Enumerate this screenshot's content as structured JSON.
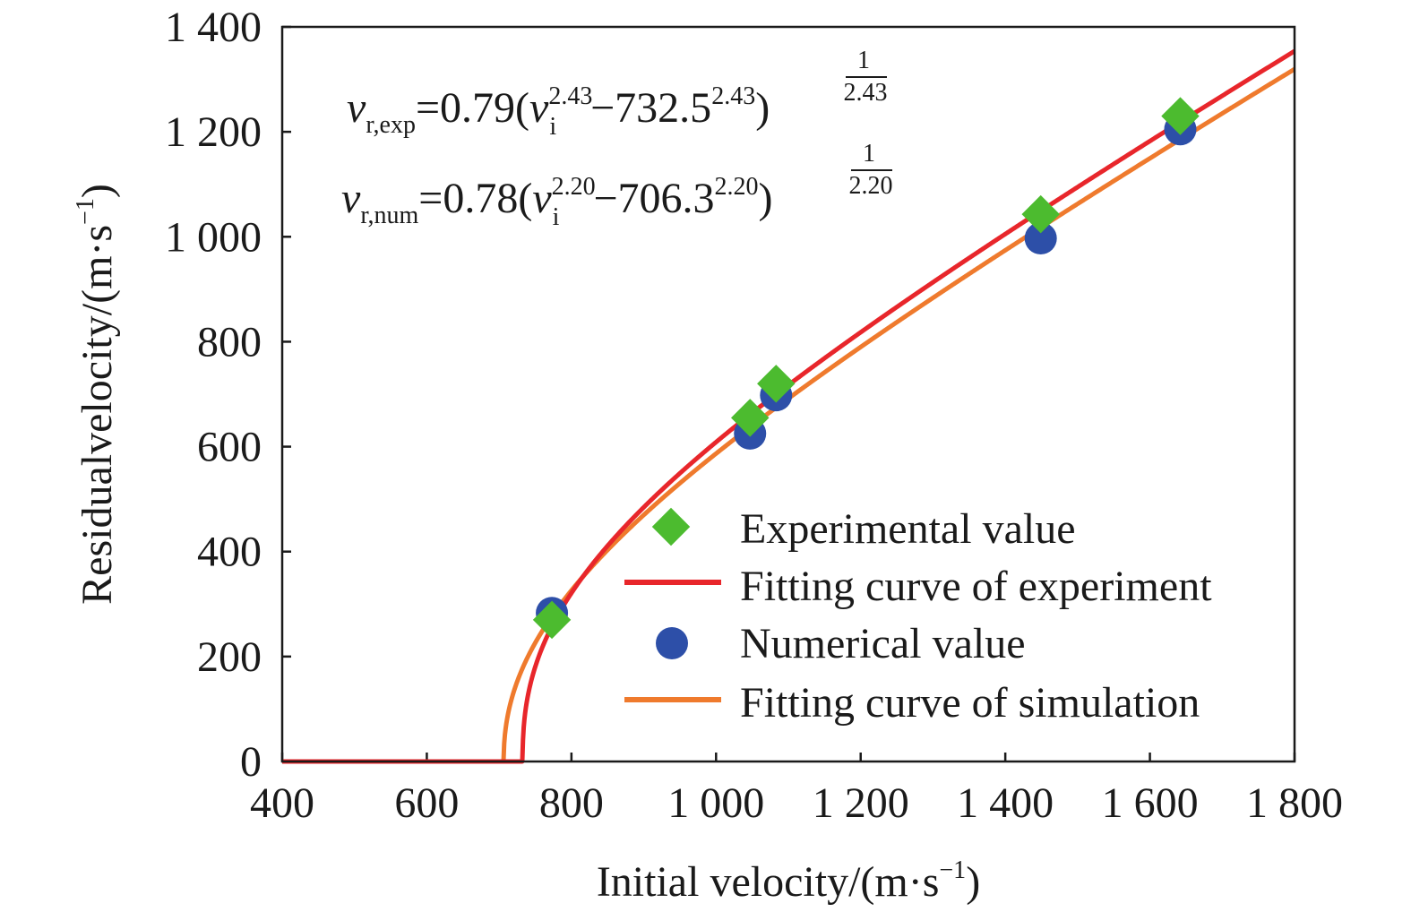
{
  "chart_data": {
    "type": "scatter",
    "xlabel": "Initial velocity/(m·s",
    "xlabel_sup": "−1",
    "xlabel_tail": ")",
    "ylabel": "Residualvelocity/(m·s",
    "ylabel_sup": "−1",
    "ylabel_tail": ")",
    "xlim": [
      400,
      1800
    ],
    "ylim": [
      0,
      1400
    ],
    "xticks": [
      400,
      600,
      800,
      1000,
      1200,
      1400,
      1600,
      1800
    ],
    "xtick_labels": [
      "400",
      "600",
      "800",
      "1 000",
      "1 200",
      "1 400",
      "1 600",
      "1 800"
    ],
    "yticks": [
      0,
      200,
      400,
      600,
      800,
      1000,
      1200,
      1400
    ],
    "ytick_labels": [
      "0",
      "200",
      "400",
      "600",
      "800",
      "1 000",
      "1 200",
      "1 400"
    ],
    "grid": false,
    "legend_position": "bottom-right",
    "series": [
      {
        "name": "Experimental value",
        "kind": "scatter",
        "marker": "diamond",
        "color": "#4cbb2f",
        "points": [
          [
            773,
            270
          ],
          [
            1047,
            655
          ],
          [
            1083,
            720
          ],
          [
            1449,
            1043
          ],
          [
            1642,
            1230
          ]
        ]
      },
      {
        "name": "Fitting curve of experiment",
        "kind": "line",
        "color": "#e8262b",
        "fit": {
          "a": 0.79,
          "p": 2.43,
          "v_bl": 732.5
        }
      },
      {
        "name": "Numerical value",
        "kind": "scatter",
        "marker": "circle",
        "color": "#2d4fa8",
        "points": [
          [
            773,
            283
          ],
          [
            1047,
            625
          ],
          [
            1083,
            698
          ],
          [
            1449,
            997
          ],
          [
            1642,
            1205
          ]
        ]
      },
      {
        "name": "Fitting curve of simulation",
        "kind": "line",
        "color": "#ef7a2d",
        "fit": {
          "a": 0.78,
          "p": 2.2,
          "v_bl": 706.3
        }
      }
    ],
    "annotations": {
      "eq1": {
        "v": "v",
        "sub": "r,exp",
        "coef": "=0.79(",
        "vi": "v",
        "vi_sub": "i",
        "exp1": "2.43",
        "mid": "−732.5",
        "exp2": "2.43",
        "close": ")",
        "frac_num": "1",
        "frac_den": "2.43"
      },
      "eq2": {
        "v": "v",
        "sub": "r,num",
        "coef": "=0.78(",
        "vi": "v",
        "vi_sub": "i",
        "exp1": "2.20",
        "mid": "−706.3",
        "exp2": "2.20",
        "close": ")",
        "frac_num": "1",
        "frac_den": "2.20"
      }
    }
  }
}
